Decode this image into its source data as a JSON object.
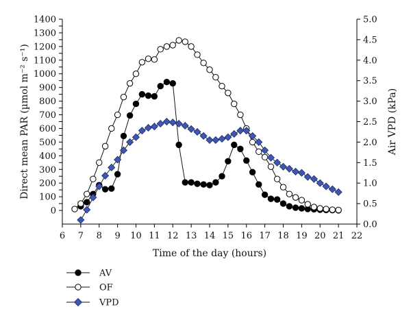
{
  "chart_data": {
    "type": "line",
    "xlabel": "Time of the day (hours)",
    "ylabel": "Direct mean PAR (µmol m⁻² s⁻¹)",
    "y2label": "Air VPD (kPa)",
    "xlim": [
      6,
      22
    ],
    "ylim": [
      -100,
      1400
    ],
    "y2lim": [
      0.0,
      5.0
    ],
    "x_ticks": [
      6,
      7,
      8,
      9,
      10,
      11,
      12,
      13,
      14,
      15,
      16,
      17,
      18,
      19,
      20,
      21,
      22
    ],
    "y_ticks": [
      0,
      50,
      100,
      150,
      200,
      250,
      300,
      350,
      400,
      450,
      500,
      550,
      600,
      650,
      700,
      750,
      800,
      850,
      900,
      950,
      1000,
      1050,
      1100,
      1150,
      1200,
      1250,
      1300,
      1350,
      1400
    ],
    "y2_ticks": [
      "0.0",
      "0.5",
      "1.0",
      "1.5",
      "2.0",
      "2.5",
      "3.0",
      "3.5",
      "4.0",
      "4.5",
      "5.0"
    ],
    "grid": false,
    "legend_position": "bottom-left",
    "series": [
      {
        "name": "AV",
        "axis": "left",
        "marker": "filled-circle",
        "color": "#000000",
        "x": [
          7,
          7.33,
          7.67,
          8,
          8.33,
          8.67,
          9,
          9.33,
          9.67,
          10,
          10.33,
          10.67,
          11,
          11.33,
          11.67,
          12,
          12.33,
          12.67,
          13,
          13.33,
          13.67,
          14,
          14.33,
          14.67,
          15,
          15.33,
          15.67,
          16,
          16.33,
          16.67,
          17,
          17.33,
          17.67,
          18,
          18.33,
          18.67,
          19,
          19.33,
          19.67,
          20,
          20.33,
          20.67,
          21
        ],
        "y": [
          30,
          60,
          120,
          185,
          155,
          160,
          265,
          545,
          695,
          780,
          850,
          840,
          835,
          910,
          940,
          930,
          480,
          205,
          205,
          195,
          190,
          185,
          205,
          250,
          360,
          480,
          450,
          365,
          280,
          190,
          115,
          85,
          80,
          50,
          30,
          20,
          15,
          10,
          8,
          5,
          3,
          2,
          1
        ]
      },
      {
        "name": "OF",
        "axis": "left",
        "marker": "open-circle",
        "color": "#000000",
        "x": [
          6.67,
          7,
          7.33,
          7.67,
          8,
          8.33,
          8.67,
          9,
          9.33,
          9.67,
          10,
          10.33,
          10.67,
          11,
          11.33,
          11.67,
          12,
          12.33,
          12.67,
          13,
          13.33,
          13.67,
          14,
          14.33,
          14.67,
          15,
          15.33,
          15.67,
          16,
          16.33,
          16.67,
          17,
          17.33,
          17.67,
          18,
          18.33,
          18.67,
          19,
          19.33,
          19.67,
          20,
          20.33,
          20.67,
          21
        ],
        "y": [
          10,
          50,
          120,
          230,
          350,
          470,
          600,
          700,
          830,
          930,
          1000,
          1085,
          1110,
          1105,
          1180,
          1200,
          1210,
          1245,
          1235,
          1200,
          1140,
          1080,
          1030,
          975,
          910,
          860,
          780,
          700,
          600,
          500,
          430,
          390,
          320,
          230,
          170,
          120,
          95,
          75,
          45,
          25,
          15,
          10,
          5,
          3
        ]
      },
      {
        "name": "VPD",
        "axis": "right",
        "marker": "diamond",
        "color": "#3f57b2",
        "x": [
          7,
          7.33,
          7.67,
          8,
          8.33,
          8.67,
          9,
          9.33,
          9.67,
          10,
          10.33,
          10.67,
          11,
          11.33,
          11.67,
          12,
          12.33,
          12.67,
          13,
          13.33,
          13.67,
          14,
          14.33,
          14.67,
          15,
          15.33,
          15.67,
          16,
          16.33,
          16.67,
          17,
          17.33,
          17.67,
          18,
          18.33,
          18.67,
          19,
          19.33,
          19.67,
          20,
          20.33,
          20.67,
          21
        ],
        "y": [
          0.1,
          0.35,
          0.65,
          0.92,
          1.18,
          1.38,
          1.57,
          1.8,
          2.0,
          2.12,
          2.28,
          2.35,
          2.38,
          2.45,
          2.5,
          2.48,
          2.45,
          2.4,
          2.32,
          2.25,
          2.15,
          2.05,
          2.05,
          2.08,
          2.12,
          2.2,
          2.28,
          2.28,
          2.15,
          2.0,
          1.8,
          1.62,
          1.5,
          1.4,
          1.35,
          1.28,
          1.25,
          1.15,
          1.1,
          1.0,
          0.92,
          0.85,
          0.78
        ]
      }
    ]
  }
}
